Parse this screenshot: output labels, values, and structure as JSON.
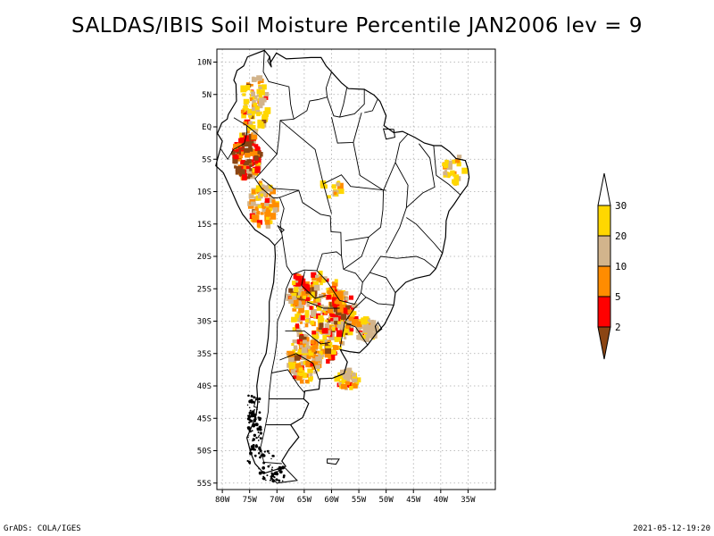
{
  "title": "SALDAS/IBIS Soil Moisture Percentile JAN2006 lev = 9",
  "map": {
    "lon_range": [
      -81,
      -30
    ],
    "lat_range": [
      -56,
      12
    ],
    "lon_ticks": [
      {
        "value": -80,
        "label": "80W"
      },
      {
        "value": -75,
        "label": "75W"
      },
      {
        "value": -70,
        "label": "70W"
      },
      {
        "value": -65,
        "label": "65W"
      },
      {
        "value": -60,
        "label": "60W"
      },
      {
        "value": -55,
        "label": "55W"
      },
      {
        "value": -50,
        "label": "50W"
      },
      {
        "value": -45,
        "label": "45W"
      },
      {
        "value": -40,
        "label": "40W"
      },
      {
        "value": -35,
        "label": "35W"
      }
    ],
    "lat_ticks": [
      {
        "value": 10,
        "label": "10N"
      },
      {
        "value": 5,
        "label": "5N"
      },
      {
        "value": 0,
        "label": "EQ"
      },
      {
        "value": -5,
        "label": "5S"
      },
      {
        "value": -10,
        "label": "10S"
      },
      {
        "value": -15,
        "label": "15S"
      },
      {
        "value": -20,
        "label": "20S"
      },
      {
        "value": -25,
        "label": "25S"
      },
      {
        "value": -30,
        "label": "30S"
      },
      {
        "value": -35,
        "label": "35S"
      },
      {
        "value": -40,
        "label": "40S"
      },
      {
        "value": -45,
        "label": "45S"
      },
      {
        "value": -50,
        "label": "50S"
      },
      {
        "value": -55,
        "label": "55S"
      }
    ],
    "grid": true
  },
  "legend": {
    "placement": "right",
    "bins": [
      {
        "color": "#8B4513",
        "label": "2"
      },
      {
        "color": "#FF0000",
        "label": "5"
      },
      {
        "color": "#FF8C00",
        "label": "10"
      },
      {
        "color": "#D2B48C",
        "label": "20"
      },
      {
        "color": "#FFD700",
        "label": "30"
      },
      {
        "color": "#FFFFFF",
        "label": ""
      }
    ]
  },
  "footer": {
    "left": "GrADS: COLA/IGES",
    "right": "2021-05-12-19:20"
  }
}
